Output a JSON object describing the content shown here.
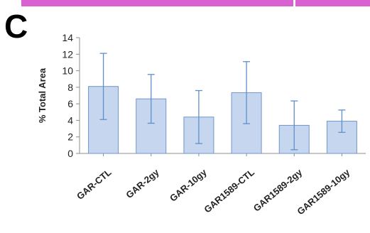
{
  "panel_label": "C",
  "colors": {
    "bar_fill": "#c5d6ee",
    "bar_stroke": "#6f97cc",
    "error_bar": "#5f8fcb",
    "axis": "#8c8c8c",
    "top_strip": "#d961d2"
  },
  "chart_data": {
    "type": "bar",
    "title": "",
    "xlabel": "",
    "ylabel": "% Total Area",
    "ylim": [
      0,
      14
    ],
    "yticks": [
      0,
      2,
      4,
      6,
      8,
      10,
      12,
      14
    ],
    "grid": false,
    "legend": "none",
    "categories": [
      "GAR-CTL",
      "GAR-2gy",
      "GAR-10gy",
      "GAR1589-CTL",
      "GAR1589-2gy",
      "GAR1589-10gy"
    ],
    "series": [
      {
        "values": [
          8.1,
          6.6,
          4.4,
          7.35,
          3.4,
          3.9
        ],
        "error": [
          4.0,
          2.95,
          3.2,
          3.75,
          2.95,
          1.35
        ]
      }
    ]
  }
}
